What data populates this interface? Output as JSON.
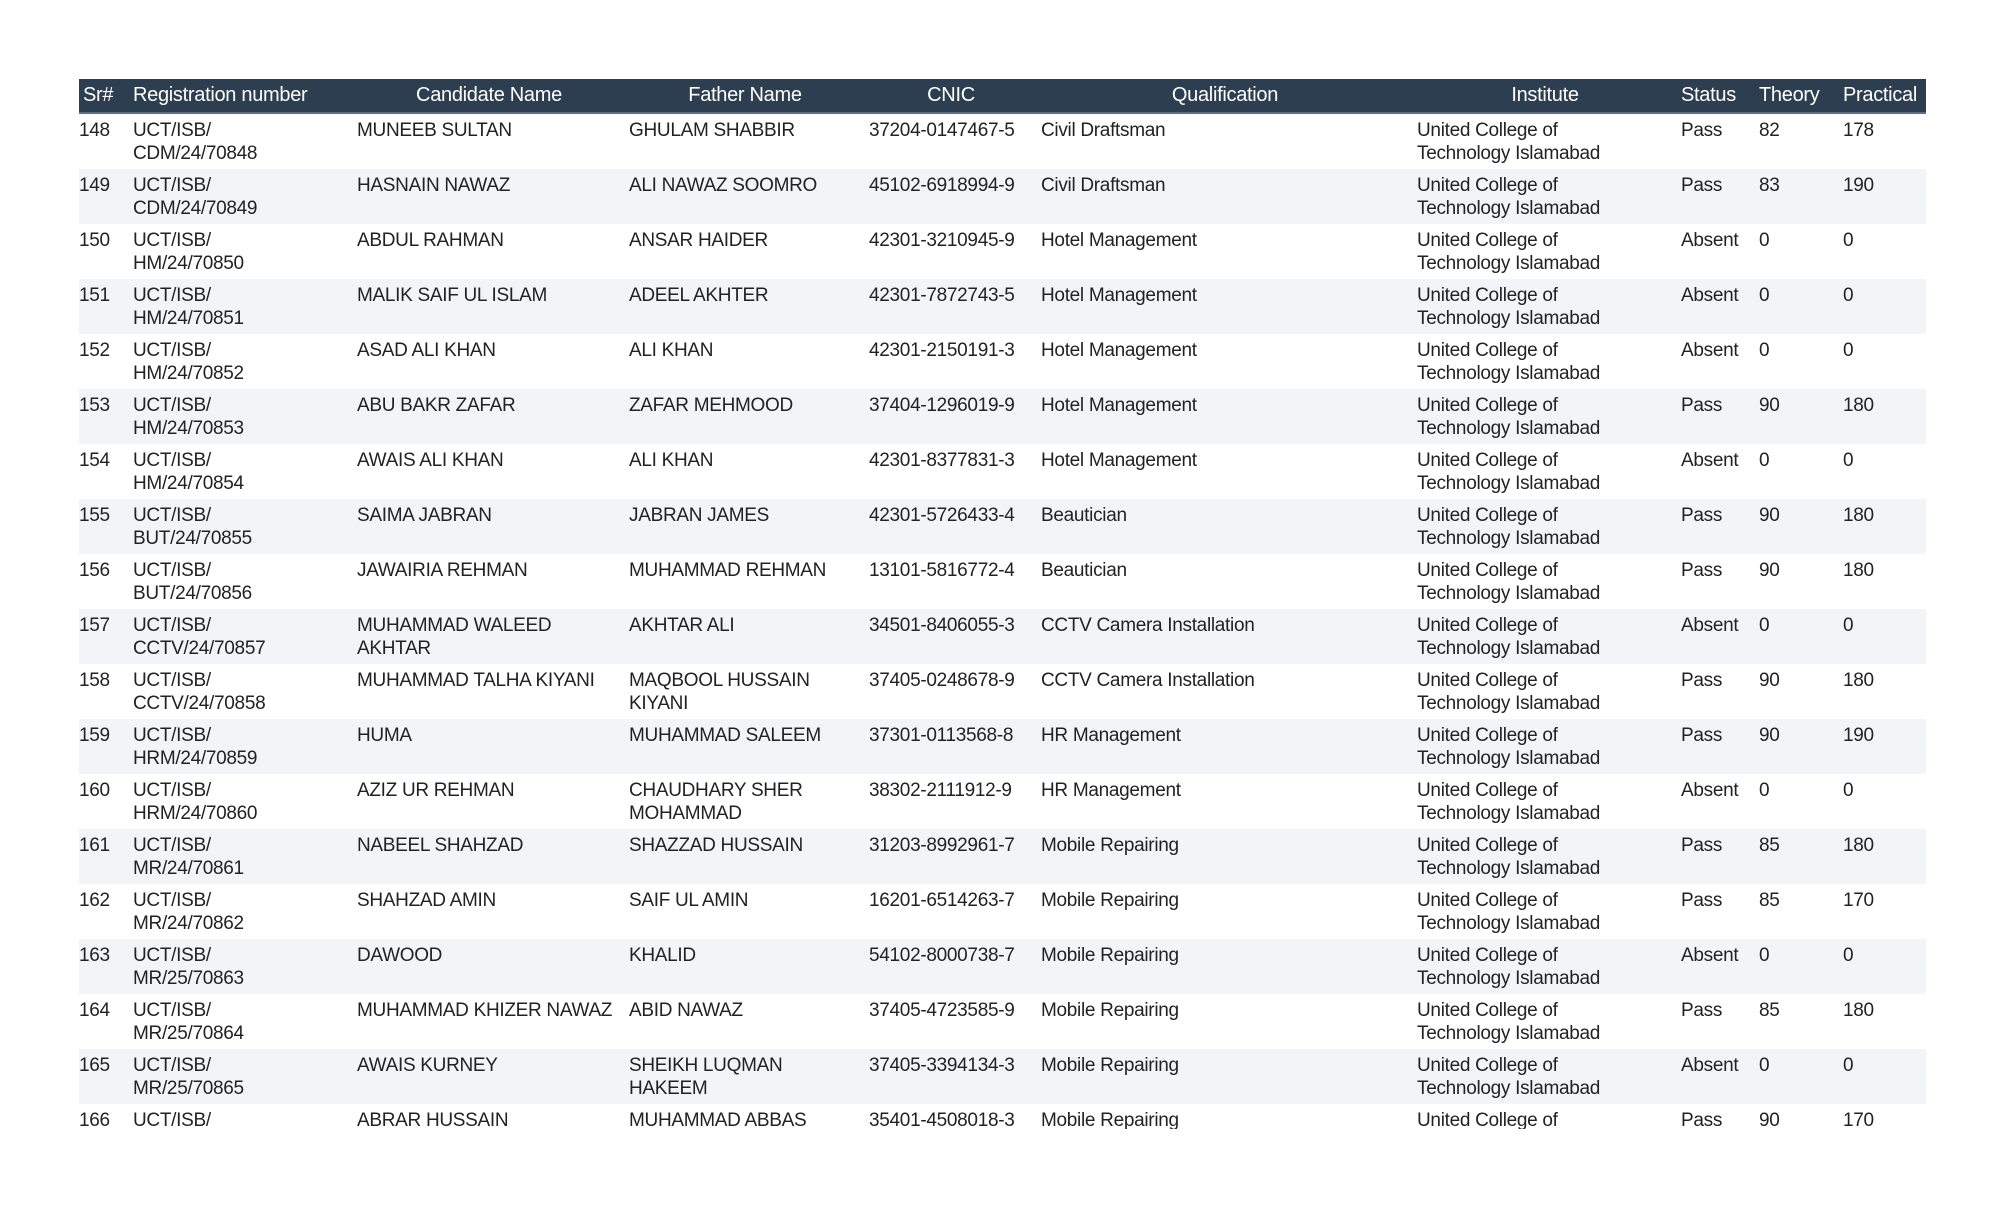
{
  "colors": {
    "header_bg": "#2c3e50",
    "header_text": "#ffffff",
    "stripe": "#f3f4f6"
  },
  "columns": [
    "Sr#",
    "Registration number",
    "Candidate Name",
    "Father Name",
    "CNIC",
    "Qualification",
    "Institute",
    "Status",
    "Theory",
    "Practical"
  ],
  "rows": [
    {
      "sr": "148",
      "reg": [
        "UCT/ISB/",
        "CDM/24/70848"
      ],
      "name": "MUNEEB SULTAN",
      "father": "GHULAM SHABBIR",
      "cnic": "37204-0147467-5",
      "qual": "Civil Draftsman",
      "inst": [
        "United College of",
        "Technology Islamabad"
      ],
      "status": "Pass",
      "theory": "82",
      "practical": "178"
    },
    {
      "sr": "149",
      "reg": [
        "UCT/ISB/",
        "CDM/24/70849"
      ],
      "name": "HASNAIN NAWAZ",
      "father": "ALI NAWAZ SOOMRO",
      "cnic": "45102-6918994-9",
      "qual": "Civil Draftsman",
      "inst": [
        "United College of",
        "Technology Islamabad"
      ],
      "status": "Pass",
      "theory": "83",
      "practical": "190"
    },
    {
      "sr": "150",
      "reg": [
        "UCT/ISB/",
        "HM/24/70850"
      ],
      "name": "ABDUL RAHMAN",
      "father": "ANSAR HAIDER",
      "cnic": "42301-3210945-9",
      "qual": "Hotel Management",
      "inst": [
        "United College of",
        "Technology Islamabad"
      ],
      "status": "Absent",
      "theory": "0",
      "practical": "0"
    },
    {
      "sr": "151",
      "reg": [
        "UCT/ISB/",
        "HM/24/70851"
      ],
      "name": "MALIK SAIF UL ISLAM",
      "father": "ADEEL AKHTER",
      "cnic": "42301-7872743-5",
      "qual": "Hotel Management",
      "inst": [
        "United College of",
        "Technology Islamabad"
      ],
      "status": "Absent",
      "theory": "0",
      "practical": "0"
    },
    {
      "sr": "152",
      "reg": [
        "UCT/ISB/",
        "HM/24/70852"
      ],
      "name": "ASAD ALI KHAN",
      "father": "ALI KHAN",
      "cnic": "42301-2150191-3",
      "qual": "Hotel Management",
      "inst": [
        "United College of",
        "Technology Islamabad"
      ],
      "status": "Absent",
      "theory": "0",
      "practical": "0"
    },
    {
      "sr": "153",
      "reg": [
        "UCT/ISB/",
        "HM/24/70853"
      ],
      "name": "ABU BAKR ZAFAR",
      "father": "ZAFAR  MEHMOOD",
      "cnic": "37404-1296019-9",
      "qual": "Hotel Management",
      "inst": [
        "United College of",
        "Technology Islamabad"
      ],
      "status": "Pass",
      "theory": "90",
      "practical": "180"
    },
    {
      "sr": "154",
      "reg": [
        "UCT/ISB/",
        "HM/24/70854"
      ],
      "name": "AWAIS ALI KHAN",
      "father": "ALI KHAN",
      "cnic": "42301-8377831-3",
      "qual": "Hotel Management",
      "inst": [
        "United College of",
        "Technology Islamabad"
      ],
      "status": "Absent",
      "theory": "0",
      "practical": "0"
    },
    {
      "sr": "155",
      "reg": [
        "UCT/ISB/",
        "BUT/24/70855"
      ],
      "name": "SAIMA JABRAN",
      "father": "JABRAN JAMES",
      "cnic": "42301-5726433-4",
      "qual": "Beautician",
      "inst": [
        "United College of",
        "Technology Islamabad"
      ],
      "status": "Pass",
      "theory": "90",
      "practical": "180"
    },
    {
      "sr": "156",
      "reg": [
        "UCT/ISB/",
        "BUT/24/70856"
      ],
      "name": "JAWAIRIA REHMAN",
      "father": "MUHAMMAD REHMAN",
      "cnic": "13101-5816772-4",
      "qual": "Beautician",
      "inst": [
        "United College of",
        "Technology Islamabad"
      ],
      "status": "Pass",
      "theory": "90",
      "practical": "180"
    },
    {
      "sr": "157",
      "reg": [
        "UCT/ISB/",
        "CCTV/24/70857"
      ],
      "name": "MUHAMMAD WALEED AKHTAR",
      "father": "AKHTAR ALI",
      "cnic": "34501-8406055-3",
      "qual": "CCTV Camera Installation",
      "inst": [
        "United College of",
        "Technology Islamabad"
      ],
      "status": "Absent",
      "theory": "0",
      "practical": "0"
    },
    {
      "sr": "158",
      "reg": [
        "UCT/ISB/",
        "CCTV/24/70858"
      ],
      "name": "MUHAMMAD TALHA KIYANI",
      "father": "MAQBOOL HUSSAIN KIYANI",
      "cnic": "37405-0248678-9",
      "qual": "CCTV Camera Installation",
      "inst": [
        "United College of",
        "Technology Islamabad"
      ],
      "status": "Pass",
      "theory": "90",
      "practical": "180"
    },
    {
      "sr": "159",
      "reg": [
        "UCT/ISB/",
        "HRM/24/70859"
      ],
      "name": "HUMA",
      "father": "MUHAMMAD SALEEM",
      "cnic": "37301-0113568-8",
      "qual": "HR Management",
      "inst": [
        "United College of",
        "Technology Islamabad"
      ],
      "status": "Pass",
      "theory": "90",
      "practical": "190"
    },
    {
      "sr": "160",
      "reg": [
        "UCT/ISB/",
        "HRM/24/70860"
      ],
      "name": "AZIZ UR REHMAN",
      "father": "CHAUDHARY SHER MOHAMMAD",
      "cnic": "38302-2111912-9",
      "qual": "HR Management",
      "inst": [
        "United College of",
        "Technology Islamabad"
      ],
      "status": "Absent",
      "theory": "0",
      "practical": "0"
    },
    {
      "sr": "161",
      "reg": [
        "UCT/ISB/",
        "MR/24/70861"
      ],
      "name": "NABEEL SHAHZAD",
      "father": "SHAZZAD HUSSAIN",
      "cnic": "31203-8992961-7",
      "qual": "Mobile Repairing",
      "inst": [
        "United College of",
        "Technology Islamabad"
      ],
      "status": "Pass",
      "theory": "85",
      "practical": "180"
    },
    {
      "sr": "162",
      "reg": [
        "UCT/ISB/",
        "MR/24/70862"
      ],
      "name": "SHAHZAD AMIN",
      "father": "SAIF UL AMIN",
      "cnic": "16201-6514263-7",
      "qual": "Mobile Repairing",
      "inst": [
        "United College of",
        "Technology Islamabad"
      ],
      "status": "Pass",
      "theory": "85",
      "practical": "170"
    },
    {
      "sr": "163",
      "reg": [
        "UCT/ISB/",
        "MR/25/70863"
      ],
      "name": "DAWOOD",
      "father": "KHALID",
      "cnic": "54102-8000738-7",
      "qual": "Mobile Repairing",
      "inst": [
        "United College of",
        "Technology Islamabad"
      ],
      "status": "Absent",
      "theory": "0",
      "practical": "0"
    },
    {
      "sr": "164",
      "reg": [
        "UCT/ISB/",
        "MR/25/70864"
      ],
      "name": "MUHAMMAD KHIZER NAWAZ",
      "father": "ABID NAWAZ",
      "cnic": "37405-4723585-9",
      "qual": "Mobile Repairing",
      "inst": [
        "United College of",
        "Technology Islamabad"
      ],
      "status": "Pass",
      "theory": "85",
      "practical": "180"
    },
    {
      "sr": "165",
      "reg": [
        "UCT/ISB/",
        "MR/25/70865"
      ],
      "name": "AWAIS KURNEY",
      "father": "SHEIKH LUQMAN HAKEEM",
      "cnic": "37405-3394134-3",
      "qual": "Mobile Repairing",
      "inst": [
        "United College of",
        "Technology Islamabad"
      ],
      "status": "Absent",
      "theory": "0",
      "practical": "0"
    },
    {
      "sr": "166",
      "reg": [
        "UCT/ISB/"
      ],
      "name": "ABRAR HUSSAIN",
      "father": "MUHAMMAD ABBAS",
      "cnic": "35401-4508018-3",
      "qual": "Mobile Repairing",
      "inst": [
        "United College of"
      ],
      "status": "Pass",
      "theory": "90",
      "practical": "170"
    }
  ]
}
